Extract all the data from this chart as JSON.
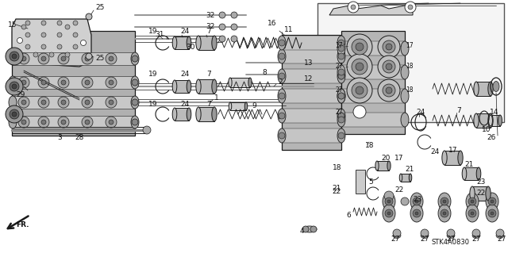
{
  "bg_color": "#ffffff",
  "line_color": "#1a1a1a",
  "label_color": "#111111",
  "diagram_code": "STK4A0830",
  "gray_dark": "#555555",
  "gray_mid": "#888888",
  "gray_light": "#cccccc",
  "gray_body": "#aaaaaa",
  "gray_fill": "#999999",
  "inset_bg": "#f5f5f5",
  "label_fs": 6.5,
  "small_fs": 5.5,
  "parts_layout": "accumulator_body_exploded"
}
